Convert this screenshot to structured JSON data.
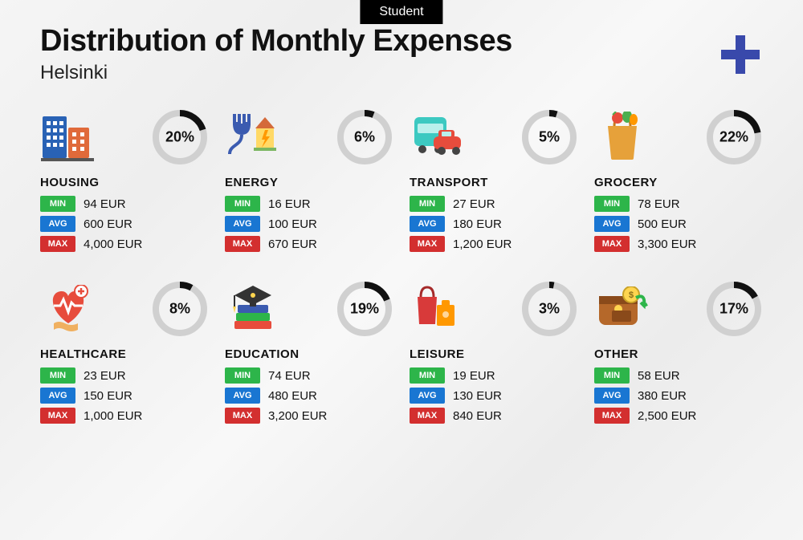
{
  "tag_label": "Student",
  "title": "Distribution of Monthly Expenses",
  "subtitle": "Helsinki",
  "currency": "EUR",
  "labels": {
    "min": "MIN",
    "avg": "AVG",
    "max": "MAX"
  },
  "colors": {
    "min": "#2db54a",
    "avg": "#1976d2",
    "max": "#d32f2f",
    "ring_fg": "#111111",
    "ring_bg": "#d0d0d0",
    "plus": "#3949ab"
  },
  "ring": {
    "radius": 30,
    "stroke_width": 8
  },
  "categories": [
    {
      "name": "HOUSING",
      "percent": 20,
      "min": "94",
      "avg": "600",
      "max": "4,000",
      "icon": "housing"
    },
    {
      "name": "ENERGY",
      "percent": 6,
      "min": "16",
      "avg": "100",
      "max": "670",
      "icon": "energy"
    },
    {
      "name": "TRANSPORT",
      "percent": 5,
      "min": "27",
      "avg": "180",
      "max": "1,200",
      "icon": "transport"
    },
    {
      "name": "GROCERY",
      "percent": 22,
      "min": "78",
      "avg": "500",
      "max": "3,300",
      "icon": "grocery"
    },
    {
      "name": "HEALTHCARE",
      "percent": 8,
      "min": "23",
      "avg": "150",
      "max": "1,000",
      "icon": "healthcare"
    },
    {
      "name": "EDUCATION",
      "percent": 19,
      "min": "74",
      "avg": "480",
      "max": "3,200",
      "icon": "education"
    },
    {
      "name": "LEISURE",
      "percent": 3,
      "min": "19",
      "avg": "130",
      "max": "840",
      "icon": "leisure"
    },
    {
      "name": "OTHER",
      "percent": 17,
      "min": "58",
      "avg": "380",
      "max": "2,500",
      "icon": "other"
    }
  ]
}
